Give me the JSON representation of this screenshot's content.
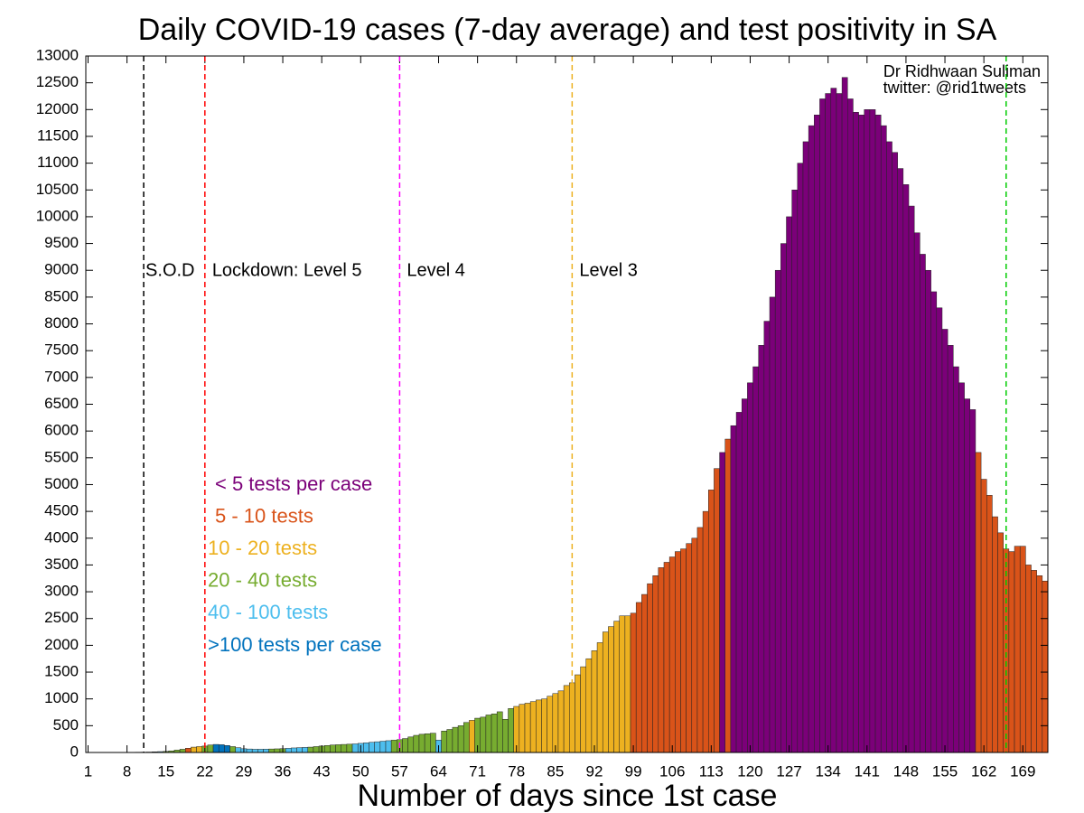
{
  "chart_data": {
    "type": "bar",
    "title": "Daily COVID-19 cases (7-day average) and test positivity in SA",
    "xlabel": "Number of days since 1st case",
    "annotations": [
      "Dr Ridhwaan Suliman",
      "twitter: @rid1tweets"
    ],
    "xlim": [
      0.6,
      173.5
    ],
    "ylim": [
      0,
      13000
    ],
    "xticks": [
      1,
      8,
      15,
      22,
      29,
      36,
      43,
      50,
      57,
      64,
      71,
      78,
      85,
      92,
      99,
      106,
      113,
      120,
      127,
      134,
      141,
      148,
      155,
      162,
      169
    ],
    "yticks": [
      0,
      500,
      1000,
      1500,
      2000,
      2500,
      3000,
      3500,
      4000,
      4500,
      5000,
      5500,
      6000,
      6500,
      7000,
      7500,
      8000,
      8500,
      9000,
      9500,
      10000,
      10500,
      11000,
      11500,
      12000,
      12500,
      13000
    ],
    "legend": [
      {
        "name": "< 5 tests per case",
        "color": "#7b0079"
      },
      {
        "name": "5 - 10 tests",
        "color": "#d95319"
      },
      {
        "name": "10 - 20 tests",
        "color": "#edb120"
      },
      {
        "name": "20 - 40 tests",
        "color": "#77ac30"
      },
      {
        "name": "40 - 100 tests",
        "color": "#4dbeee"
      },
      {
        "name": ">100 tests per case",
        "color": "#0072bd"
      }
    ],
    "vlines": [
      {
        "x": 11,
        "color": "#000000",
        "label": "S.O.D"
      },
      {
        "x": 22,
        "color": "#ff0000",
        "label": "Lockdown: Level 5"
      },
      {
        "x": 57,
        "color": "#ff00ff",
        "label": "Level 4"
      },
      {
        "x": 88,
        "color": "#edb120",
        "label": "Level 3"
      },
      {
        "x": 166,
        "color": "#00cc00"
      }
    ],
    "x": [
      1,
      2,
      3,
      4,
      5,
      6,
      7,
      8,
      9,
      10,
      11,
      12,
      13,
      14,
      15,
      16,
      17,
      18,
      19,
      20,
      21,
      22,
      23,
      24,
      25,
      26,
      27,
      28,
      29,
      30,
      31,
      32,
      33,
      34,
      35,
      36,
      37,
      38,
      39,
      40,
      41,
      42,
      43,
      44,
      45,
      46,
      47,
      48,
      49,
      50,
      51,
      52,
      53,
      54,
      55,
      56,
      57,
      58,
      59,
      60,
      61,
      62,
      63,
      64,
      65,
      66,
      67,
      68,
      69,
      70,
      71,
      72,
      73,
      74,
      75,
      76,
      77,
      78,
      79,
      80,
      81,
      82,
      83,
      84,
      85,
      86,
      87,
      88,
      89,
      90,
      91,
      92,
      93,
      94,
      95,
      96,
      97,
      98,
      99,
      100,
      101,
      102,
      103,
      104,
      105,
      106,
      107,
      108,
      109,
      110,
      111,
      112,
      113,
      114,
      115,
      116,
      117,
      118,
      119,
      120,
      121,
      122,
      123,
      124,
      125,
      126,
      127,
      128,
      129,
      130,
      131,
      132,
      133,
      134,
      135,
      136,
      137,
      138,
      139,
      140,
      141,
      142,
      143,
      144,
      145,
      146,
      147,
      148,
      149,
      150,
      151,
      152,
      153,
      154,
      155,
      156,
      157,
      158,
      159,
      160,
      161,
      162,
      163,
      164,
      165,
      166,
      167,
      168,
      169,
      170,
      171,
      172,
      173
    ],
    "values": [
      0,
      0,
      0,
      1,
      1,
      2,
      2,
      3,
      4,
      5,
      6,
      8,
      12,
      16,
      20,
      30,
      45,
      60,
      80,
      100,
      110,
      120,
      140,
      150,
      145,
      130,
      110,
      90,
      70,
      65,
      60,
      60,
      62,
      65,
      68,
      72,
      78,
      85,
      90,
      95,
      100,
      110,
      120,
      130,
      140,
      145,
      150,
      155,
      160,
      170,
      180,
      190,
      200,
      210,
      220,
      230,
      240,
      260,
      290,
      320,
      340,
      350,
      360,
      230,
      400,
      430,
      470,
      500,
      560,
      600,
      640,
      660,
      700,
      720,
      760,
      620,
      820,
      860,
      900,
      920,
      950,
      980,
      1000,
      1050,
      1100,
      1150,
      1250,
      1300,
      1450,
      1600,
      1750,
      1900,
      2050,
      2250,
      2350,
      2450,
      2550,
      2550,
      2600,
      2800,
      2950,
      3150,
      3300,
      3450,
      3550,
      3650,
      3750,
      3800,
      3900,
      4000,
      4200,
      4500,
      4900,
      5300,
      5600,
      5850,
      6100,
      6350,
      6600,
      6900,
      7200,
      7600,
      8050,
      8500,
      9000,
      9500,
      10000,
      10500,
      11000,
      11400,
      11700,
      11900,
      12200,
      12300,
      12400,
      12300,
      12600,
      12200,
      11950,
      11900,
      12000,
      12000,
      11900,
      11700,
      11400,
      11200,
      10900,
      10600,
      10200,
      9700,
      9300,
      9000,
      8600,
      8300,
      7900,
      7600,
      7200,
      6900,
      6600,
      6400,
      5600,
      5100,
      4800,
      4400,
      4100,
      3800,
      3750,
      3850,
      3850,
      3500,
      3400,
      3300,
      3200
    ],
    "groups": [
      4,
      4,
      4,
      4,
      4,
      4,
      4,
      4,
      4,
      4,
      4,
      4,
      4,
      4,
      3,
      3,
      3,
      3,
      1,
      2,
      2,
      3,
      3,
      5,
      5,
      5,
      3,
      4,
      4,
      4,
      4,
      4,
      4,
      3,
      3,
      3,
      4,
      4,
      4,
      4,
      3,
      3,
      3,
      3,
      3,
      3,
      3,
      3,
      4,
      4,
      4,
      4,
      4,
      4,
      4,
      3,
      3,
      3,
      3,
      3,
      3,
      3,
      3,
      4,
      3,
      3,
      3,
      3,
      3,
      2,
      3,
      3,
      3,
      3,
      3,
      3,
      3,
      2,
      2,
      2,
      2,
      2,
      2,
      2,
      2,
      2,
      2,
      2,
      2,
      2,
      2,
      2,
      2,
      2,
      2,
      2,
      2,
      2,
      1,
      1,
      1,
      1,
      1,
      1,
      1,
      1,
      1,
      1,
      1,
      1,
      1,
      1,
      1,
      1,
      0,
      1,
      0,
      0,
      0,
      0,
      0,
      0,
      0,
      0,
      0,
      0,
      0,
      0,
      0,
      0,
      0,
      0,
      0,
      0,
      0,
      0,
      0,
      0,
      0,
      0,
      0,
      0,
      0,
      0,
      0,
      0,
      0,
      0,
      0,
      0,
      0,
      0,
      0,
      0,
      0,
      0,
      0,
      0,
      0,
      0,
      1,
      1,
      1,
      1,
      1,
      1,
      1,
      1,
      1,
      1,
      1,
      1,
      1
    ]
  }
}
